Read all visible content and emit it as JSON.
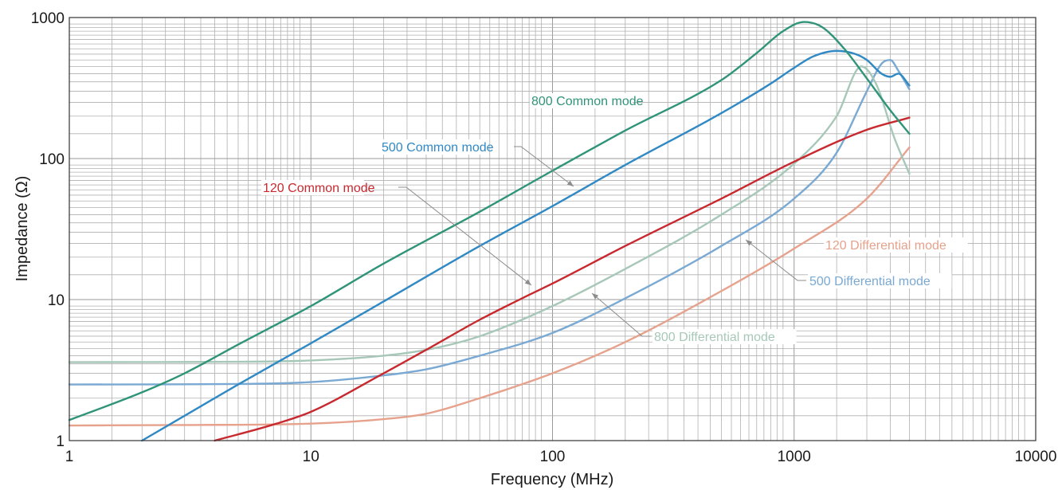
{
  "chart_data": {
    "type": "line",
    "title": "",
    "xlabel": "Frequency (MHz)",
    "ylabel": "Impedance (Ω)",
    "xscale": "log",
    "yscale": "log",
    "xlim": [
      1,
      10000
    ],
    "ylim": [
      1,
      1000
    ],
    "grid": true,
    "x_ticks": [
      "1",
      "10",
      "100",
      "1000",
      "10000"
    ],
    "y_ticks": [
      "1",
      "10",
      "100",
      "1000"
    ],
    "series": [
      {
        "name": "800 Common mode",
        "color": "#2f9478",
        "x": [
          1,
          2,
          3,
          5,
          10,
          20,
          50,
          100,
          200,
          500,
          700,
          900,
          1100,
          1300,
          1600,
          2000,
          2500,
          3000
        ],
        "y": [
          1.4,
          2.2,
          3.0,
          4.8,
          9.0,
          18.0,
          42.0,
          82.0,
          158.0,
          360.0,
          560.0,
          800.0,
          930.0,
          860.0,
          610.0,
          370.0,
          220.0,
          150.0
        ]
      },
      {
        "name": "500 Common mode",
        "color": "#3089c4",
        "x": [
          2,
          3,
          5,
          10,
          20,
          50,
          100,
          200,
          500,
          800,
          1000,
          1200,
          1500,
          1800,
          2000,
          2300,
          2500,
          2700,
          3000
        ],
        "y": [
          1.0,
          1.5,
          2.5,
          4.9,
          9.7,
          24.0,
          46.0,
          90.0,
          210.0,
          340.0,
          440.0,
          530.0,
          580.0,
          550.0,
          500.0,
          400.0,
          380.0,
          400.0,
          330.0
        ]
      },
      {
        "name": "120 Common mode",
        "color": "#c8292f",
        "x": [
          4,
          7,
          10,
          20,
          30,
          50,
          80,
          100,
          200,
          500,
          1000,
          2000,
          3000
        ],
        "y": [
          1.0,
          1.3,
          1.6,
          3.0,
          4.4,
          7.2,
          10.8,
          13.0,
          24.0,
          52.0,
          95.0,
          160.0,
          195.0
        ]
      },
      {
        "name": "800 Differential mode",
        "color": "#a7c8b8",
        "x": [
          1,
          5,
          10,
          20,
          30,
          50,
          100,
          200,
          500,
          1000,
          1500,
          1900,
          2200,
          2600,
          3000
        ],
        "y": [
          3.6,
          3.62,
          3.7,
          4.0,
          4.4,
          5.5,
          9.0,
          16.5,
          40.0,
          92.0,
          200.0,
          450.0,
          330.0,
          140.0,
          78.0
        ]
      },
      {
        "name": "500 Differential mode",
        "color": "#7aa9d3",
        "x": [
          1,
          5,
          10,
          20,
          30,
          50,
          100,
          200,
          500,
          1000,
          1500,
          2000,
          2300,
          2500,
          2700,
          3000
        ],
        "y": [
          2.5,
          2.52,
          2.6,
          2.9,
          3.2,
          4.0,
          5.8,
          10.2,
          24.0,
          52.0,
          110.0,
          300.0,
          470.0,
          500.0,
          420.0,
          310.0
        ]
      },
      {
        "name": "120 Differential mode",
        "color": "#e6a28c",
        "x": [
          1,
          3,
          10,
          20,
          30,
          50,
          100,
          200,
          500,
          1000,
          2000,
          3000
        ],
        "y": [
          1.28,
          1.29,
          1.32,
          1.42,
          1.55,
          2.0,
          3.0,
          5.0,
          11.5,
          23.0,
          52.0,
          120.0
        ]
      }
    ]
  }
}
